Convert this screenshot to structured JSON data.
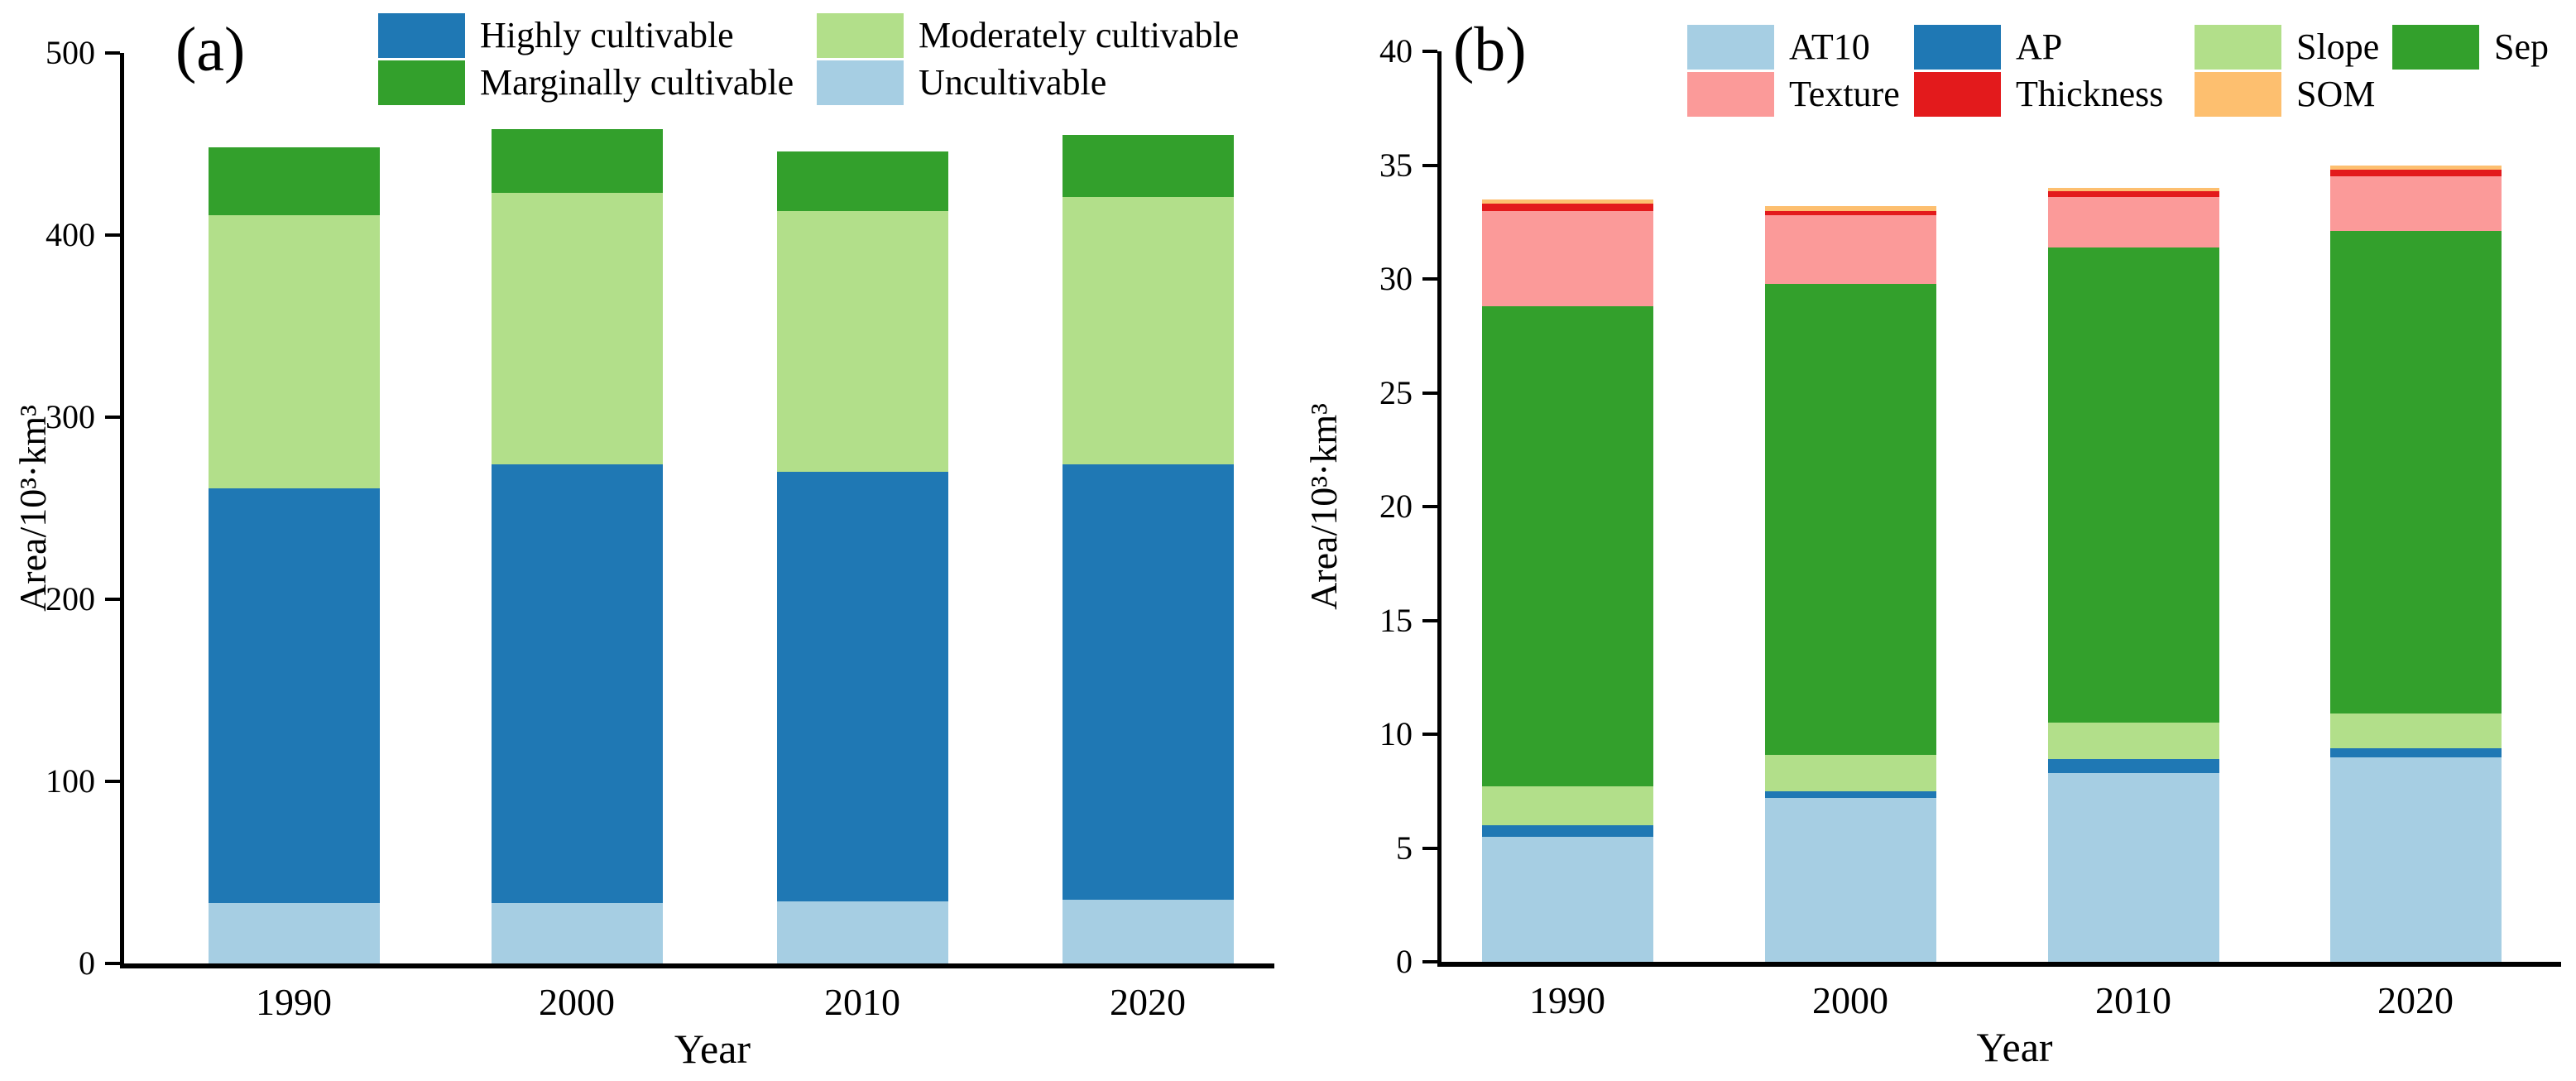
{
  "figure": {
    "background": "#ffffff",
    "description": "Two stacked bar charts of cultivable land area by year"
  },
  "chart_data": [
    {
      "type": "bar",
      "stacked": true,
      "panel_label": "(a)",
      "xlabel": "Year",
      "ylabel": "Area/10³·km³",
      "ylim": [
        0,
        500
      ],
      "yticks": [
        0,
        100,
        200,
        300,
        400,
        500
      ],
      "grid": false,
      "legend_position": "top",
      "categories": [
        "1990",
        "2000",
        "2010",
        "2020"
      ],
      "series": [
        {
          "name": "Uncultivable",
          "color": "#A6CEE3",
          "values": [
            33,
            33,
            34,
            35
          ]
        },
        {
          "name": "Highly cultivable",
          "color": "#1F78B4",
          "values": [
            228,
            241,
            236,
            239
          ]
        },
        {
          "name": "Moderately cultivable",
          "color": "#B2DF8A",
          "values": [
            150,
            149,
            143,
            147
          ]
        },
        {
          "name": "Marginally cultivable",
          "color": "#33A02C",
          "values": [
            37,
            35,
            33,
            34
          ]
        }
      ],
      "totals": [
        448,
        458,
        446,
        455
      ],
      "legend_rows": [
        [
          "Highly cultivable",
          "Moderately cultivable"
        ],
        [
          "Marginally cultivable",
          "Uncultivable"
        ]
      ]
    },
    {
      "type": "bar",
      "stacked": true,
      "panel_label": "(b)",
      "xlabel": "Year",
      "ylabel": "Area/10³·km³",
      "ylim": [
        0,
        40
      ],
      "yticks": [
        0,
        5,
        10,
        15,
        20,
        25,
        30,
        35,
        40
      ],
      "grid": false,
      "legend_position": "top",
      "categories": [
        "1990",
        "2000",
        "2010",
        "2020"
      ],
      "series": [
        {
          "name": "AT10",
          "color": "#A6CEE3",
          "values": [
            5.5,
            7.2,
            8.3,
            9.0
          ]
        },
        {
          "name": "AP",
          "color": "#1F78B4",
          "values": [
            0.5,
            0.3,
            0.6,
            0.4
          ]
        },
        {
          "name": "Slope",
          "color": "#B2DF8A",
          "values": [
            1.7,
            1.6,
            1.6,
            1.5
          ]
        },
        {
          "name": "Sep",
          "color": "#33A02C",
          "values": [
            21.1,
            20.7,
            20.9,
            21.2
          ]
        },
        {
          "name": "Texture",
          "color": "#FB9A99",
          "values": [
            4.2,
            3.0,
            2.2,
            2.4
          ]
        },
        {
          "name": "Thickness",
          "color": "#E31A1C",
          "values": [
            0.3,
            0.2,
            0.25,
            0.3
          ]
        },
        {
          "name": "SOM",
          "color": "#FDBF6F",
          "values": [
            0.2,
            0.2,
            0.15,
            0.2
          ]
        }
      ],
      "totals": [
        33.5,
        33.2,
        34.0,
        35.0
      ],
      "legend_rows": [
        [
          "AT10",
          "AP",
          "Slope",
          "Sep"
        ],
        [
          "Texture",
          "Thickness",
          "SOM"
        ]
      ]
    }
  ]
}
